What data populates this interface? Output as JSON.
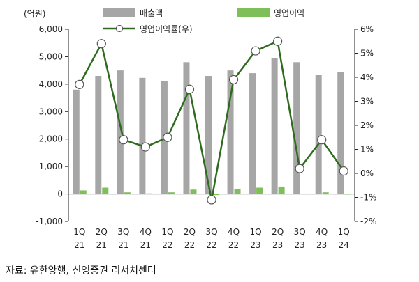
{
  "chart_data": {
    "type": "bar+line",
    "unit_label": "(억원)",
    "categories": [
      [
        "1Q",
        "21"
      ],
      [
        "2Q",
        "21"
      ],
      [
        "3Q",
        "21"
      ],
      [
        "4Q",
        "21"
      ],
      [
        "1Q",
        "22"
      ],
      [
        "2Q",
        "22"
      ],
      [
        "3Q",
        "22"
      ],
      [
        "4Q",
        "22"
      ],
      [
        "1Q",
        "23"
      ],
      [
        "2Q",
        "23"
      ],
      [
        "3Q",
        "23"
      ],
      [
        "4Q",
        "23"
      ],
      [
        "1Q",
        "24"
      ]
    ],
    "series": [
      {
        "name": "매출액",
        "type": "bar",
        "axis": "left",
        "color": "#a6a6a6",
        "values": [
          3800,
          4300,
          4500,
          4230,
          4100,
          4800,
          4300,
          4500,
          4400,
          4950,
          4800,
          4350,
          4430
        ]
      },
      {
        "name": "영업이익",
        "type": "bar",
        "axis": "left",
        "color": "#7fbf5a",
        "values": [
          130,
          230,
          60,
          20,
          60,
          160,
          -40,
          170,
          230,
          270,
          10,
          60,
          -10
        ]
      },
      {
        "name": "영업이익률(우)",
        "type": "line",
        "axis": "right",
        "color": "#2e6b1e",
        "values": [
          3.7,
          5.4,
          1.4,
          1.1,
          1.5,
          3.5,
          -1.1,
          3.9,
          5.1,
          5.5,
          0.2,
          1.4,
          0.1
        ]
      }
    ],
    "y_left": {
      "min": -1000,
      "max": 6000,
      "step": 1000,
      "tick_labels": [
        "-1,000",
        "0",
        "1,000",
        "2,000",
        "3,000",
        "4,000",
        "5,000",
        "6,000"
      ]
    },
    "y_right": {
      "min": -2,
      "max": 6,
      "step": 1,
      "tick_labels": [
        "-2%",
        "-1%",
        "0%",
        "1%",
        "2%",
        "3%",
        "4%",
        "5%",
        "6%"
      ]
    },
    "legend_position": "top",
    "grid": false
  },
  "source": "자료: 유한양행, 신영증권 리서치센터"
}
